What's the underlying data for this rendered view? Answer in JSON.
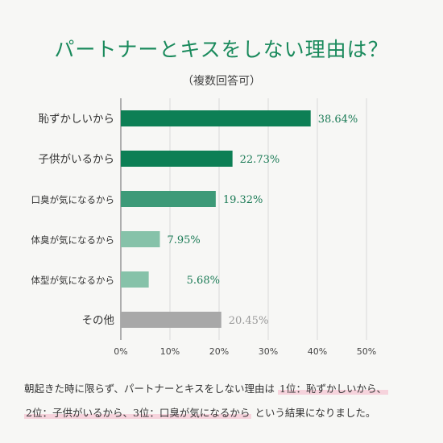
{
  "title": "パートナーとキスをしない理由は？",
  "subtitle": "（複数回答可）",
  "colors": {
    "title": "#1a8a5c",
    "grid": "#d9d9d9",
    "axis": "#666666",
    "highlight": "#f6d3dc"
  },
  "chart_data": {
    "type": "bar",
    "orientation": "horizontal",
    "categories": [
      "恥ずかしいから",
      "子供がいるから",
      "口臭が気になるから",
      "体臭が気になるから",
      "体型が気になるから",
      "その他"
    ],
    "values": [
      38.64,
      22.73,
      19.32,
      7.95,
      5.68,
      20.45
    ],
    "value_labels": [
      "38.64%",
      "22.73%",
      "19.32%",
      "7.95%",
      "5.68%",
      "20.45%"
    ],
    "bar_colors": [
      "#0d7f55",
      "#0d7f55",
      "#3d9a78",
      "#86c2a9",
      "#86c2a9",
      "#a8a8a8"
    ],
    "label_colors": [
      "#1a7a55",
      "#1a7a55",
      "#1a7a55",
      "#1a7a55",
      "#1a7a55",
      "#999999"
    ],
    "xlim": [
      0,
      50
    ],
    "xticks": [
      "0%",
      "10%",
      "20%",
      "30%",
      "40%",
      "50%"
    ],
    "xlabel": "",
    "ylabel": "",
    "grid": true
  },
  "footer": {
    "line1_pre": "朝起きた時に限らず、パートナーとキスをしない理由は",
    "line1_hl": "1位：恥ずかしいから、",
    "line2_hl": "2位：子供がいるから、3位：口臭が気になるから",
    "line2_post": "という結果になりました。"
  }
}
